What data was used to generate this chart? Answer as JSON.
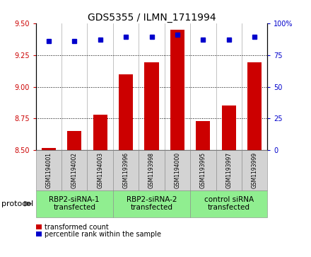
{
  "title": "GDS5355 / ILMN_1711994",
  "samples": [
    "GSM1194001",
    "GSM1194002",
    "GSM1194003",
    "GSM1193996",
    "GSM1193998",
    "GSM1194000",
    "GSM1193995",
    "GSM1193997",
    "GSM1193999"
  ],
  "bar_values": [
    8.52,
    8.65,
    8.78,
    9.1,
    9.19,
    9.45,
    8.73,
    8.85,
    9.19
  ],
  "percentile_values": [
    86,
    86,
    87,
    89,
    89,
    91,
    87,
    87,
    89
  ],
  "ylim_left": [
    8.5,
    9.5
  ],
  "ylim_right": [
    0,
    100
  ],
  "yticks_left": [
    8.5,
    8.75,
    9.0,
    9.25,
    9.5
  ],
  "yticks_right": [
    0,
    25,
    50,
    75,
    100
  ],
  "bar_color": "#cc0000",
  "marker_color": "#0000cc",
  "groups": [
    {
      "label": "RBP2-siRNA-1\ntransfected",
      "start": 0,
      "end": 3,
      "color": "#90ee90"
    },
    {
      "label": "RBP2-siRNA-2\ntransfected",
      "start": 3,
      "end": 6,
      "color": "#90ee90"
    },
    {
      "label": "control siRNA\ntransfected",
      "start": 6,
      "end": 9,
      "color": "#90ee90"
    }
  ],
  "protocol_label": "protocol",
  "legend_bar_label": "transformed count",
  "legend_marker_label": "percentile rank within the sample",
  "tick_color_left": "#cc0000",
  "tick_color_right": "#0000cc",
  "bar_width": 0.55,
  "marker_size": 5,
  "fontsize_title": 10,
  "fontsize_ticks": 7,
  "fontsize_sample": 5.5,
  "fontsize_group": 7.5,
  "fontsize_legend": 7,
  "fontsize_protocol": 8
}
